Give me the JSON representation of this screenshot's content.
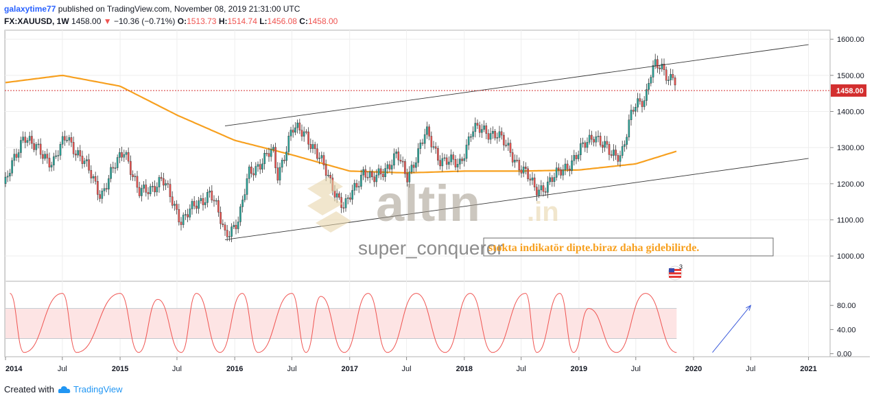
{
  "header": {
    "username": "galaxytime77",
    "published_text": "published on TradingView.com, November 08, 2019 21:31:00 UTC",
    "symbol_line": "FX:XAUUSD, 1W",
    "last": "1458.00",
    "change": "−10.36 (−0.71%)",
    "o_label": "O:",
    "o_value": "1513.73",
    "h_label": "H:",
    "h_value": "1514.74",
    "l_label": "L:",
    "l_value": "1456.08",
    "c_label": "C:",
    "c_value": "1458.00"
  },
  "watermark": {
    "brand": "altin",
    "tld": ".in",
    "author": "super_conqueror"
  },
  "annotation_text": "stokta indikatör dipte.biraz daha gidebilirde.",
  "event_badge": "3",
  "footer": {
    "created_with": "Created with",
    "brand": "TradingView"
  },
  "colors": {
    "up_candle": "#26a69a",
    "down_candle": "#ef5350",
    "ma": "#f7a01f",
    "price_line": "#d32f2f",
    "stoch": "#ef5350",
    "stoch_band": "#fde4e4",
    "channel": "#333333",
    "arrow": "#3b5bdb",
    "annotation": "#f7a01f"
  },
  "chart_data": [
    {
      "type": "candlestick",
      "symbol": "FX:XAUUSD",
      "interval": "1W",
      "ylim": [
        930,
        1625
      ],
      "yticks": [
        1000,
        1100,
        1200,
        1300,
        1400,
        1500,
        1600
      ],
      "ytick_labels": [
        "1000.00",
        "1100.00",
        "1200.00",
        "1300.00",
        "1400.00",
        "1500.00",
        "1600.00"
      ],
      "xticks": [
        "2014",
        "Jul",
        "2015",
        "Jul",
        "2016",
        "Jul",
        "2017",
        "Jul",
        "2018",
        "Jul",
        "2019",
        "Jul",
        "2020",
        "Jul",
        "2021"
      ],
      "last_price_label": "1458.00",
      "price_path": [
        [
          "2014-01-01",
          1200
        ],
        [
          "2014-03-01",
          1340
        ],
        [
          "2014-04-01",
          1300
        ],
        [
          "2014-06-01",
          1260
        ],
        [
          "2014-07-15",
          1330
        ],
        [
          "2014-09-01",
          1270
        ],
        [
          "2014-11-01",
          1170
        ],
        [
          "2015-01-15",
          1300
        ],
        [
          "2015-03-01",
          1170
        ],
        [
          "2015-05-15",
          1210
        ],
        [
          "2015-07-15",
          1100
        ],
        [
          "2015-09-01",
          1140
        ],
        [
          "2015-10-15",
          1180
        ],
        [
          "2015-12-01",
          1060
        ],
        [
          "2016-01-15",
          1100
        ],
        [
          "2016-02-15",
          1230
        ],
        [
          "2016-05-01",
          1290
        ],
        [
          "2016-05-15",
          1220
        ],
        [
          "2016-07-01",
          1350
        ],
        [
          "2016-08-15",
          1340
        ],
        [
          "2016-10-01",
          1260
        ],
        [
          "2016-12-15",
          1130
        ],
        [
          "2017-02-15",
          1240
        ],
        [
          "2017-03-15",
          1205
        ],
        [
          "2017-06-01",
          1280
        ],
        [
          "2017-07-01",
          1215
        ],
        [
          "2017-09-01",
          1340
        ],
        [
          "2017-10-15",
          1270
        ],
        [
          "2017-12-15",
          1250
        ],
        [
          "2018-01-25",
          1350
        ],
        [
          "2018-04-15",
          1340
        ],
        [
          "2018-05-15",
          1300
        ],
        [
          "2018-07-15",
          1230
        ],
        [
          "2018-08-15",
          1180
        ],
        [
          "2018-09-15",
          1195
        ],
        [
          "2018-11-01",
          1230
        ],
        [
          "2019-01-01",
          1285
        ],
        [
          "2019-02-20",
          1340
        ],
        [
          "2019-04-15",
          1275
        ],
        [
          "2019-05-15",
          1285
        ],
        [
          "2019-06-20",
          1400
        ],
        [
          "2019-08-01",
          1440
        ],
        [
          "2019-08-15",
          1510
        ],
        [
          "2019-09-01",
          1530
        ],
        [
          "2019-10-15",
          1490
        ],
        [
          "2019-11-01",
          1510
        ],
        [
          "2019-11-08",
          1458
        ]
      ],
      "moving_average": [
        [
          "2014-01-01",
          1480
        ],
        [
          "2014-07-01",
          1500
        ],
        [
          "2015-01-01",
          1470
        ],
        [
          "2015-07-01",
          1390
        ],
        [
          "2016-01-01",
          1320
        ],
        [
          "2016-07-01",
          1280
        ],
        [
          "2017-01-01",
          1235
        ],
        [
          "2017-07-01",
          1230
        ],
        [
          "2018-01-01",
          1235
        ],
        [
          "2018-07-01",
          1235
        ],
        [
          "2019-01-01",
          1238
        ],
        [
          "2019-07-01",
          1255
        ],
        [
          "2019-11-08",
          1290
        ]
      ],
      "channel_lines": [
        {
          "from": [
            "2015-12-01",
            1360
          ],
          "to": [
            "2021-01-01",
            1585
          ]
        },
        {
          "from": [
            "2015-12-01",
            1045
          ],
          "to": [
            "2021-01-01",
            1270
          ]
        }
      ]
    },
    {
      "type": "line",
      "name": "stochastic",
      "ylim": [
        -5,
        120
      ],
      "yticks": [
        0,
        40,
        80
      ],
      "ytick_labels": [
        "0.00",
        "40.00",
        "80.00"
      ],
      "band": [
        25,
        75
      ],
      "peaks": [
        [
          "2014-01-15",
          100
        ],
        [
          "2014-07-01",
          100
        ],
        [
          "2015-01-01",
          100
        ],
        [
          "2015-05-01",
          90
        ],
        [
          "2015-09-01",
          100
        ],
        [
          "2016-01-25",
          100
        ],
        [
          "2016-07-01",
          100
        ],
        [
          "2016-10-01",
          95
        ],
        [
          "2017-03-01",
          100
        ],
        [
          "2017-08-01",
          100
        ],
        [
          "2018-01-20",
          100
        ],
        [
          "2018-07-15",
          100
        ],
        [
          "2018-11-01",
          100
        ],
        [
          "2019-02-01",
          75
        ],
        [
          "2019-08-01",
          100
        ]
      ],
      "troughs": [
        [
          "2014-03-01",
          2
        ],
        [
          "2014-08-15",
          2
        ],
        [
          "2015-03-01",
          2
        ],
        [
          "2015-07-15",
          2
        ],
        [
          "2015-11-15",
          2
        ],
        [
          "2016-03-15",
          2
        ],
        [
          "2016-08-15",
          2
        ],
        [
          "2016-12-15",
          2
        ],
        [
          "2017-05-01",
          2
        ],
        [
          "2017-11-01",
          2
        ],
        [
          "2018-04-01",
          2
        ],
        [
          "2018-08-20",
          2
        ],
        [
          "2018-12-15",
          2
        ],
        [
          "2019-05-01",
          2
        ],
        [
          "2019-11-08",
          2
        ]
      ],
      "arrow": {
        "from": [
          "2020-03-01",
          2
        ],
        "to": [
          "2020-07-01",
          80
        ]
      }
    }
  ]
}
